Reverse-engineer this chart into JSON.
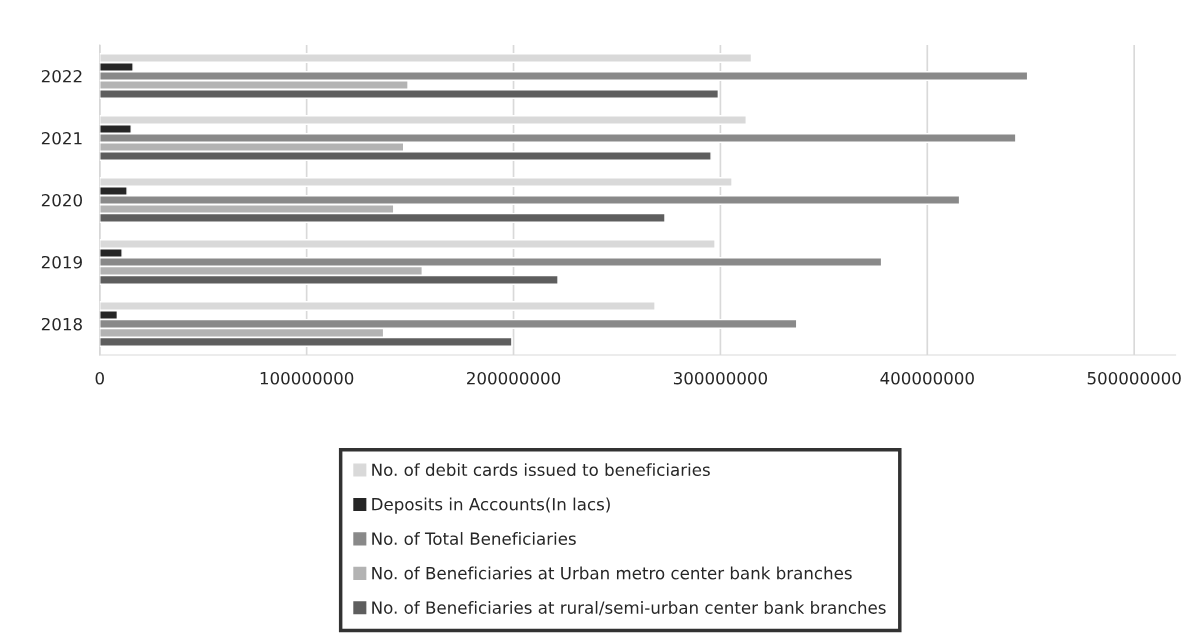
{
  "chart_data": {
    "type": "bar",
    "orientation": "horizontal",
    "categories": [
      "2022",
      "2021",
      "2020",
      "2019",
      "2018"
    ],
    "series": [
      {
        "name": "No. of debit cards issued to beneficiaries",
        "color": "#d9d9d9",
        "values": [
          315000000,
          312500000,
          305600000,
          297400000,
          268400000
        ]
      },
      {
        "name": "Deposits in Accounts(In lacs)",
        "color": "#262626",
        "values": [
          16100000,
          15200000,
          13200000,
          10800000,
          8500000
        ]
      },
      {
        "name": "No. of Total Beneficiaries",
        "color": "#898989",
        "values": [
          448500000,
          442800000,
          415600000,
          377900000,
          336900000
        ]
      },
      {
        "name": "No. of Beneficiaries at Urban metro center bank branches",
        "color": "#b3b3b3",
        "values": [
          149000000,
          146900000,
          142100000,
          155900000,
          137200000
        ]
      },
      {
        "name": "No. of Beneficiaries at rural/semi-urban center bank branches",
        "color": "#5e5e5e",
        "values": [
          299000000,
          295500000,
          273200000,
          221500000,
          199200000
        ]
      }
    ],
    "xlim": [
      0,
      520000000
    ],
    "xticks": [
      0,
      100000000,
      200000000,
      300000000,
      400000000,
      500000000
    ],
    "grid": "x",
    "legend": "bottom"
  }
}
